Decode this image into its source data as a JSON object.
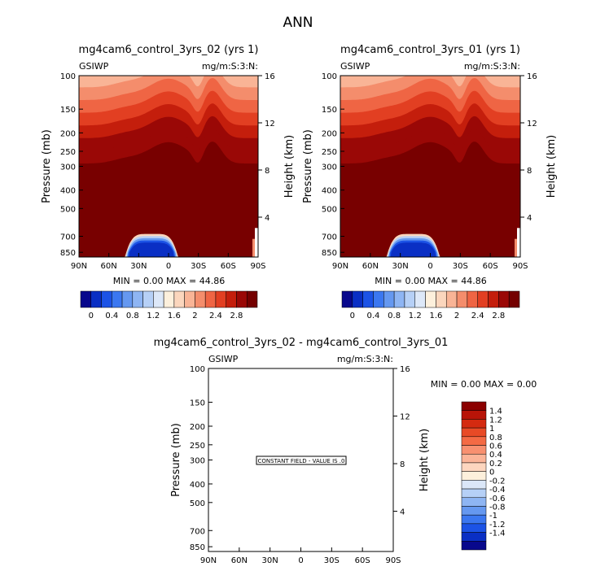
{
  "page": {
    "title": "ANN"
  },
  "chart_data": [
    {
      "type": "heatmap",
      "title": "mg4cam6_control_3yrs_02 (yrs 1)",
      "left_label": "GSIWP",
      "right_label": "mg/m:S:3:N:",
      "ylabel": "Pressure (mb)",
      "ylabel_right": "Height (km)",
      "x_ticks": [
        "90N",
        "60N",
        "30N",
        "0",
        "30S",
        "60S",
        "90S"
      ],
      "y_ticks": [
        "100",
        "150",
        "200",
        "250",
        "300",
        "400",
        "500",
        "700",
        "850"
      ],
      "y_ticks_right": [
        "16",
        "12",
        "8",
        "4"
      ],
      "stats": "MIN =    0.00   MAX =   44.86",
      "colorbar": [
        "0",
        "0.4",
        "0.8",
        "1.2",
        "1.6",
        "2",
        "2.4",
        "2.8"
      ]
    },
    {
      "type": "heatmap",
      "title": "mg4cam6_control_3yrs_01 (yrs 1)",
      "left_label": "GSIWP",
      "right_label": "mg/m:S:3:N:",
      "ylabel": "Pressure (mb)",
      "ylabel_right": "Height (km)",
      "x_ticks": [
        "90N",
        "60N",
        "30N",
        "0",
        "30S",
        "60S",
        "90S"
      ],
      "y_ticks": [
        "100",
        "150",
        "200",
        "250",
        "300",
        "400",
        "500",
        "700",
        "850"
      ],
      "y_ticks_right": [
        "16",
        "12",
        "8",
        "4"
      ],
      "stats": "MIN =    0.00   MAX =   44.86",
      "colorbar": [
        "0",
        "0.4",
        "0.8",
        "1.2",
        "1.6",
        "2",
        "2.4",
        "2.8"
      ]
    },
    {
      "type": "heatmap",
      "title": "mg4cam6_control_3yrs_02 - mg4cam6_control_3yrs_01",
      "left_label": "GSIWP",
      "right_label": "mg/m:S:3:N:",
      "ylabel": "Pressure (mb)",
      "ylabel_right": "Height (km)",
      "x_ticks": [
        "90N",
        "60N",
        "30N",
        "0",
        "30S",
        "60S",
        "90S"
      ],
      "y_ticks": [
        "100",
        "150",
        "200",
        "250",
        "300",
        "400",
        "500",
        "700",
        "850"
      ],
      "y_ticks_right": [
        "16",
        "12",
        "8",
        "4"
      ],
      "stats": "MIN =    0.00   MAX =    0.00",
      "annotation": "CONSTANT FIELD - VALUE IS .0",
      "colorbar": [
        "1.4",
        "1.2",
        "1",
        "0.8",
        "0.6",
        "0.4",
        "0.2",
        "0",
        "-0.2",
        "-0.4",
        "-0.6",
        "-0.8",
        "-1",
        "-1.2",
        "-1.4"
      ]
    }
  ]
}
